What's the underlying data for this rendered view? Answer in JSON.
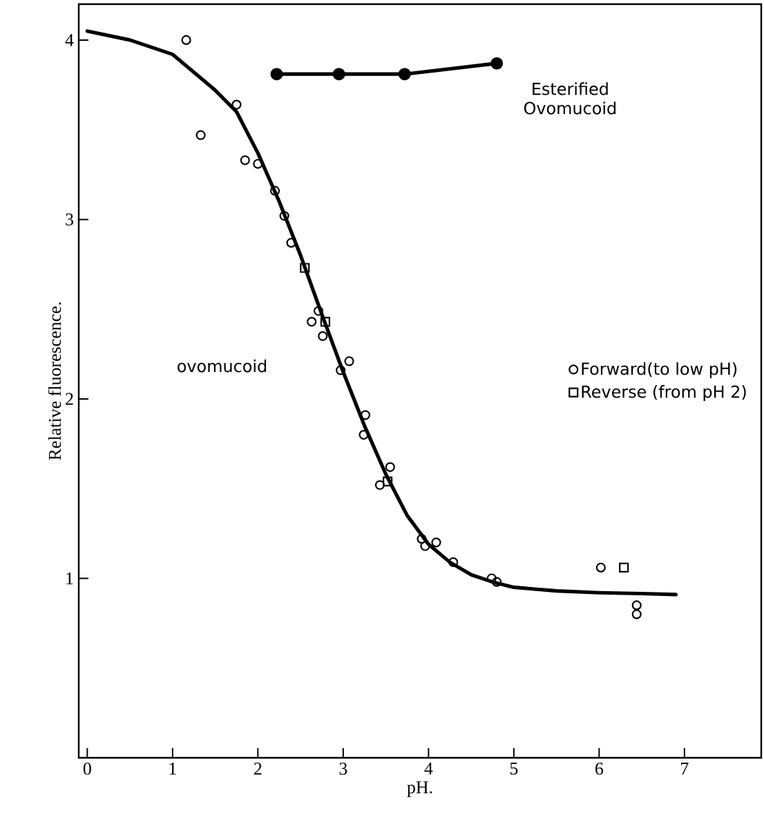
{
  "chart_data": {
    "type": "scatter",
    "xlabel": "pH.",
    "ylabel": "Relative fluorescence.",
    "xlim": [
      -0.1,
      7.9
    ],
    "ylim": [
      0,
      4.2
    ],
    "xticks": [
      0,
      1,
      2,
      3,
      4,
      5,
      6,
      7
    ],
    "yticks": [
      1,
      2,
      3,
      4
    ],
    "grid": false,
    "legend": "right",
    "annotations": [
      "ovomucoid",
      "Esterified Ovomucoid"
    ],
    "series": [
      {
        "name": "Forward(to low pH)",
        "marker": "circle",
        "color": "#000000",
        "x": [
          1.16,
          1.33,
          1.75,
          1.85,
          2.0,
          2.2,
          2.31,
          2.39,
          2.71,
          2.63,
          2.76,
          3.07,
          2.97,
          3.26,
          3.24,
          3.55,
          3.43,
          3.92,
          3.96,
          4.09,
          4.29,
          4.74,
          4.8,
          6.02,
          6.44,
          6.44
        ],
        "values": [
          4.0,
          3.47,
          3.64,
          3.33,
          3.31,
          3.16,
          3.02,
          2.87,
          2.49,
          2.43,
          2.35,
          2.21,
          2.16,
          1.91,
          1.8,
          1.62,
          1.52,
          1.22,
          1.18,
          1.2,
          1.09,
          1.0,
          0.98,
          1.06,
          0.85,
          0.8
        ]
      },
      {
        "name": "Reverse (from pH 2)",
        "marker": "square",
        "color": "#000000",
        "x": [
          2.55,
          2.79,
          3.52,
          6.29
        ],
        "values": [
          2.73,
          2.43,
          1.54,
          1.06
        ]
      },
      {
        "type": "line",
        "marker": "none",
        "line_style": "solid",
        "color": "#000000",
        "x": [
          0,
          0.5,
          1.0,
          1.5,
          1.75,
          2.0,
          2.25,
          2.5,
          2.75,
          3.0,
          3.25,
          3.5,
          3.75,
          4.0,
          4.25,
          4.5,
          4.75,
          5.0,
          5.5,
          6.0,
          6.5,
          6.9
        ],
        "values": [
          4.05,
          4.0,
          3.92,
          3.72,
          3.6,
          3.37,
          3.1,
          2.8,
          2.47,
          2.15,
          1.85,
          1.58,
          1.35,
          1.19,
          1.09,
          1.02,
          0.98,
          0.95,
          0.93,
          0.92,
          0.915,
          0.91
        ]
      },
      {
        "type": "line",
        "marker": "circle",
        "line_style": "solid",
        "color": "#000000",
        "x": [
          2.22,
          2.95,
          3.72,
          4.8
        ],
        "values": [
          3.81,
          3.81,
          3.81,
          3.87
        ]
      }
    ]
  }
}
